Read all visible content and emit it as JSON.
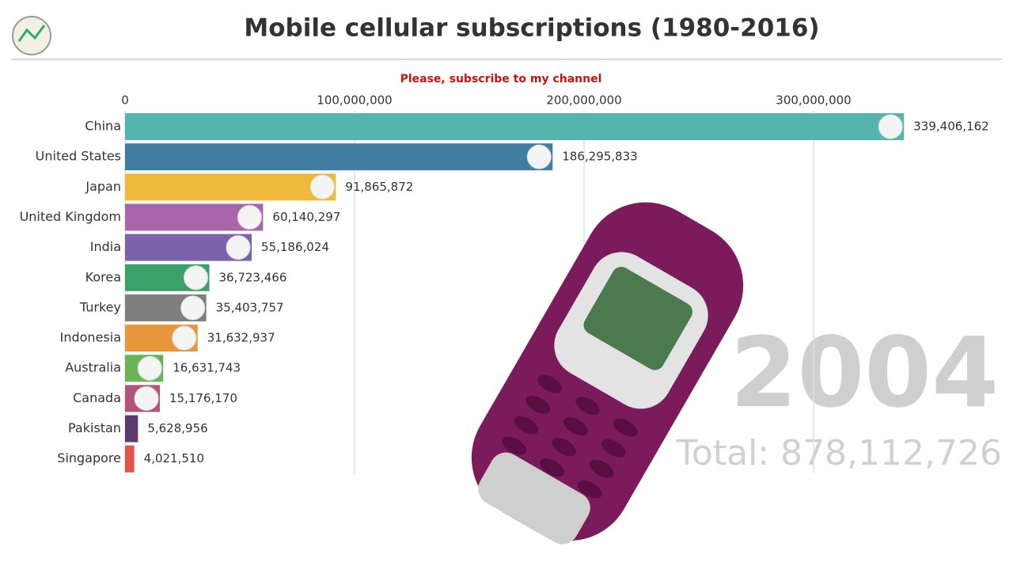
{
  "chart_data": {
    "type": "bar",
    "orientation": "horizontal",
    "title": "Mobile cellular subscriptions (1980-2016)",
    "subtitle": "Please, subscribe to my channel",
    "year": "2004",
    "total_label": "Total: 878,112,726",
    "categories": [
      "China",
      "United States",
      "Japan",
      "United Kingdom",
      "India",
      "Korea",
      "Turkey",
      "Indonesia",
      "Australia",
      "Canada",
      "Pakistan",
      "Singapore"
    ],
    "values": [
      339406162,
      186295833,
      91865872,
      60140297,
      55186024,
      36723466,
      35403757,
      31632937,
      16631743,
      15176170,
      5628956,
      4021510
    ],
    "value_labels": [
      "339,406,162",
      "186,295,833",
      "91,865,872",
      "60,140,297",
      "55,186,024",
      "36,723,466",
      "35,403,757",
      "31,632,937",
      "16,631,743",
      "15,176,170",
      "5,628,956",
      "4,021,510"
    ],
    "colors": [
      "#55b5ae",
      "#3f7ea1",
      "#efba3c",
      "#a965a9",
      "#7c63a9",
      "#3ba16b",
      "#7e7e7e",
      "#e8983b",
      "#6bb454",
      "#b3547d",
      "#5b3b6b",
      "#e2534b"
    ],
    "xlim": [
      0,
      350000000
    ],
    "xticks": [
      0,
      {
        "value": 100000000,
        "label": "100,000,000"
      },
      {
        "value": 200000000,
        "label": "200,000,000"
      },
      {
        "value": 300000000,
        "label": "300,000,000"
      }
    ],
    "grid": true
  }
}
